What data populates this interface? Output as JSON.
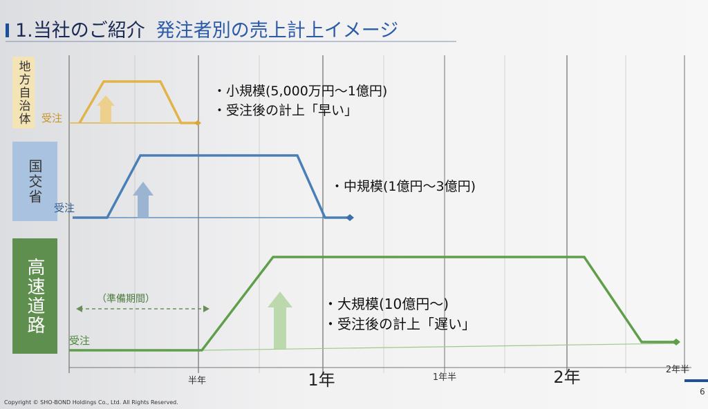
{
  "header": {
    "title": "1.当社のご紹介",
    "subtitle": "発注者別の売上計上イメージ"
  },
  "rows": [
    {
      "label": "地方自治体",
      "order_label": "受注",
      "notes": [
        "・小規模(5,000万円～1億円)",
        "・受注後の計上「早い」"
      ]
    },
    {
      "label": "国交省",
      "order_label": "受注",
      "notes": [
        "・中規模(1億円～3億円)"
      ]
    },
    {
      "label": "高速道路",
      "order_label": "受注",
      "notes": [
        "・大規模(10億円～)",
        "・受注後の計上「遅い」"
      ]
    }
  ],
  "prep_label": "（準備期間）",
  "timeline": [
    "半年",
    "1年",
    "1年半",
    "2年",
    "2年半"
  ],
  "footer": {
    "copyright": "Copyright © SHO-BOND Holdings Co., Ltd. All Rights Reserved.",
    "page": "6"
  }
}
